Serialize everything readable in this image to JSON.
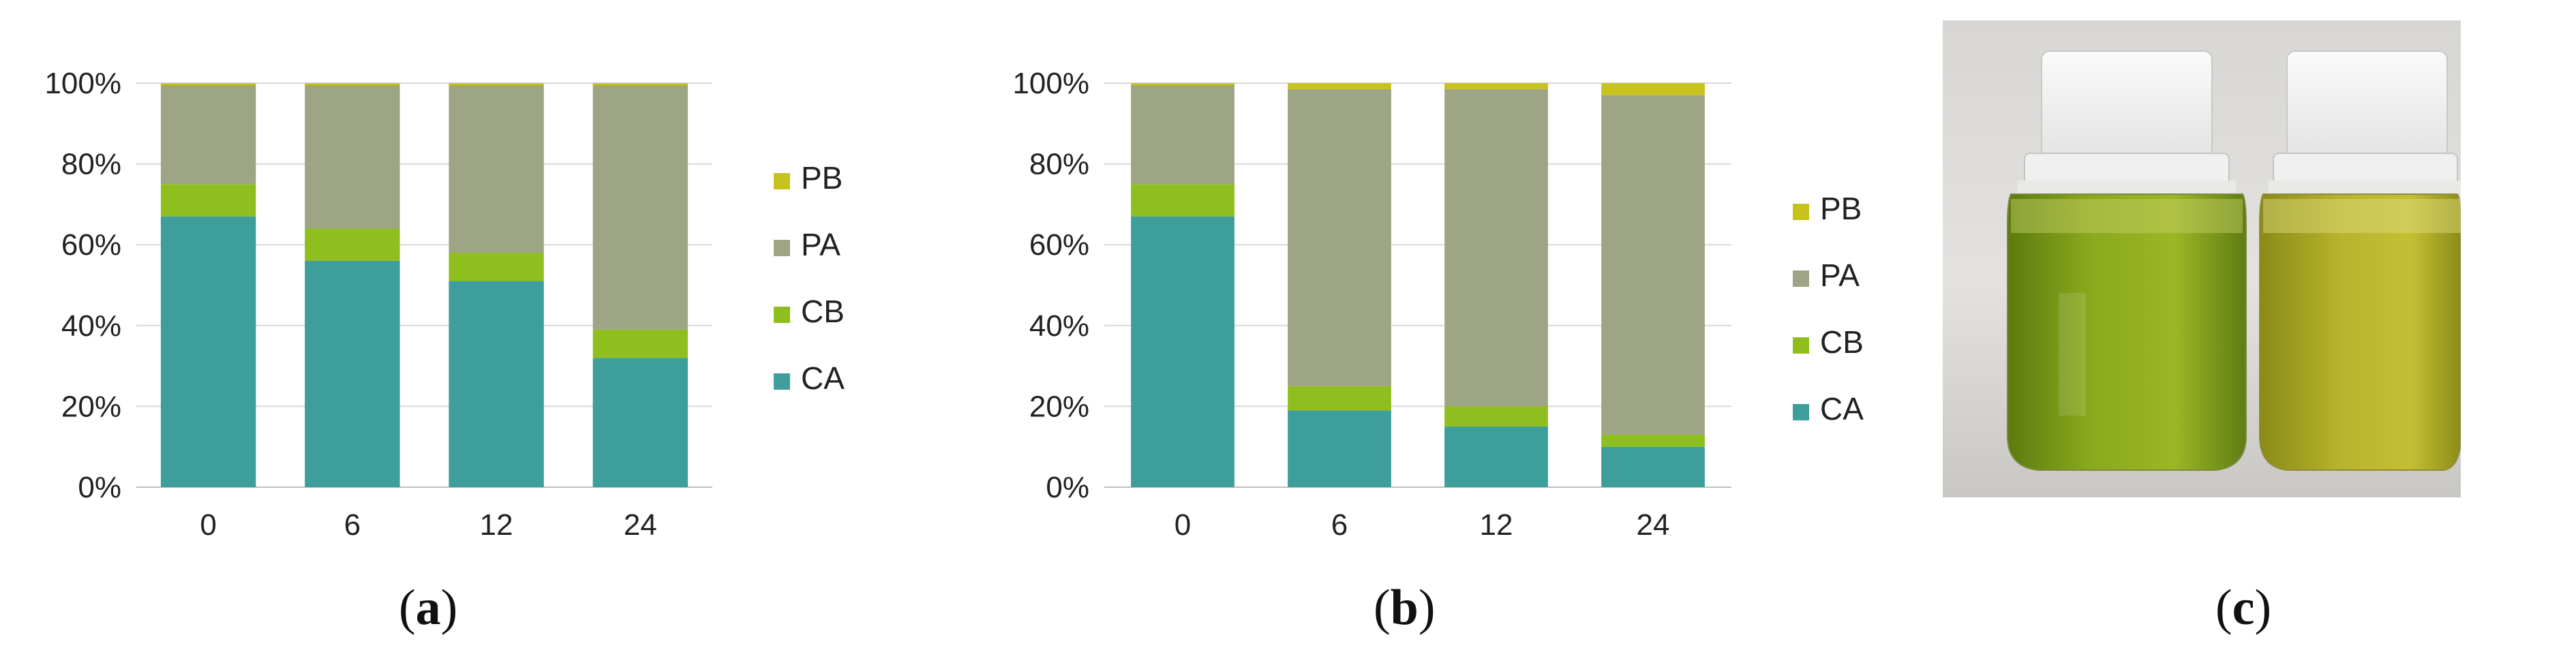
{
  "colors": {
    "CA": "#3d9e9c",
    "CB": "#8fbf1f",
    "PA": "#9ea585",
    "PB": "#c7c21e",
    "grid": "#d9d9d9",
    "axis": "#bfbfbf"
  },
  "chart_data": [
    {
      "type": "bar",
      "stacked": true,
      "percent": true,
      "categories": [
        "0",
        "6",
        "12",
        "24"
      ],
      "series": [
        {
          "name": "CA",
          "values": [
            67,
            56,
            51,
            32
          ]
        },
        {
          "name": "CB",
          "values": [
            8,
            8,
            7,
            7
          ]
        },
        {
          "name": "PA",
          "values": [
            24.5,
            35.5,
            41.5,
            60.5
          ]
        },
        {
          "name": "PB",
          "values": [
            0.5,
            0.5,
            0.5,
            0.5
          ]
        }
      ],
      "yticks": [
        "0%",
        "20%",
        "40%",
        "60%",
        "80%",
        "100%"
      ],
      "ylim": [
        0,
        100
      ],
      "grid": true,
      "legend_position": "right",
      "legend_order": [
        "PB",
        "PA",
        "CB",
        "CA"
      ]
    },
    {
      "type": "bar",
      "stacked": true,
      "percent": true,
      "categories": [
        "0",
        "6",
        "12",
        "24"
      ],
      "series": [
        {
          "name": "CA",
          "values": [
            67,
            19,
            15,
            10
          ]
        },
        {
          "name": "CB",
          "values": [
            8,
            6,
            5,
            3
          ]
        },
        {
          "name": "PA",
          "values": [
            24.5,
            73.5,
            78.5,
            84
          ]
        },
        {
          "name": "PB",
          "values": [
            0.5,
            1.5,
            1.5,
            3
          ]
        }
      ],
      "yticks": [
        "0%",
        "20%",
        "40%",
        "60%",
        "80%",
        "100%"
      ],
      "ylim": [
        0,
        100
      ],
      "grid": true,
      "legend_position": "right",
      "legend_order": [
        "PB",
        "PA",
        "CB",
        "CA"
      ]
    }
  ],
  "captions": {
    "a": "a",
    "b": "b",
    "c": "c"
  }
}
